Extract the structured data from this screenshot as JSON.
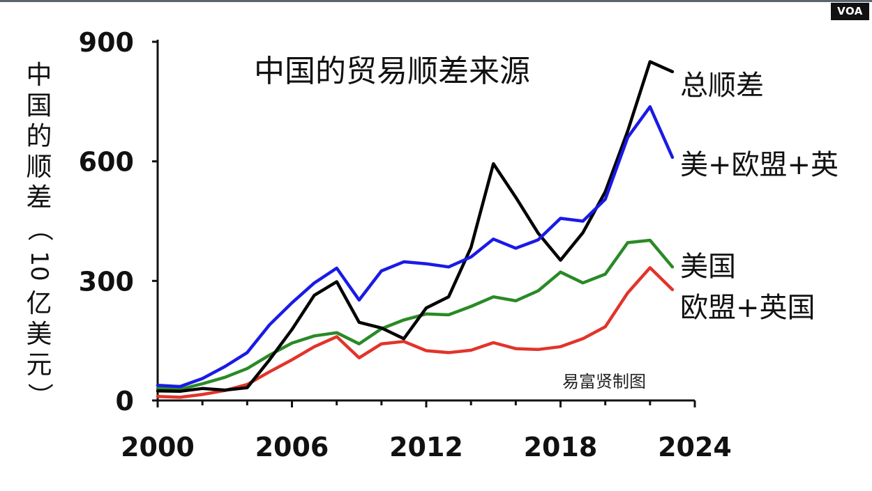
{
  "source_badge": "VOA",
  "chart_data": {
    "type": "line",
    "title": "中国的贸易顺差来源",
    "credit": "易富贤制图",
    "ylabel": "中国的顺差（10亿美元）",
    "ylabel_parts": {
      "chars_top": [
        "中",
        "国",
        "的",
        "顺",
        "差"
      ],
      "paren_open": "（",
      "number": "10",
      "chars_bottom": [
        "亿",
        "美",
        "元"
      ],
      "paren_close": "）"
    },
    "xlim": [
      2000,
      2024
    ],
    "ylim": [
      0,
      900
    ],
    "xticks": [
      "2000",
      "2006",
      "2012",
      "2018",
      "2024"
    ],
    "yticks": [
      "0",
      "300",
      "600",
      "900"
    ],
    "grid": false,
    "legend_placement": "right (inline labels at line ends)",
    "series": [
      {
        "name": "总顺差",
        "color": "#000000",
        "x": [
          2000,
          2001,
          2002,
          2003,
          2004,
          2005,
          2006,
          2007,
          2008,
          2009,
          2010,
          2011,
          2012,
          2013,
          2014,
          2015,
          2016,
          2017,
          2018,
          2019,
          2020,
          2021,
          2022,
          2023
        ],
        "y": [
          24,
          23,
          30,
          26,
          32,
          102,
          178,
          264,
          298,
          196,
          182,
          155,
          232,
          260,
          384,
          594,
          510,
          420,
          352,
          421,
          524,
          676,
          850,
          825
        ]
      },
      {
        "name": "美+欧盟+英",
        "color": "#1a1ae6",
        "x": [
          2000,
          2001,
          2002,
          2003,
          2004,
          2005,
          2006,
          2007,
          2008,
          2009,
          2010,
          2011,
          2012,
          2013,
          2014,
          2015,
          2016,
          2017,
          2018,
          2019,
          2020,
          2021,
          2022,
          2023
        ],
        "y": [
          38,
          35,
          55,
          85,
          120,
          190,
          245,
          295,
          332,
          252,
          325,
          348,
          343,
          335,
          360,
          405,
          382,
          403,
          457,
          450,
          505,
          660,
          737,
          610
        ]
      },
      {
        "name": "美国",
        "color": "#2a8a26",
        "x": [
          2000,
          2001,
          2002,
          2003,
          2004,
          2005,
          2006,
          2007,
          2008,
          2009,
          2010,
          2011,
          2012,
          2013,
          2014,
          2015,
          2016,
          2017,
          2018,
          2019,
          2020,
          2021,
          2022,
          2023
        ],
        "y": [
          30,
          28,
          42,
          58,
          80,
          114,
          144,
          162,
          170,
          142,
          180,
          202,
          217,
          215,
          236,
          260,
          250,
          275,
          322,
          295,
          317,
          396,
          402,
          335
        ]
      },
      {
        "name": "欧盟+英国",
        "color": "#e2342a",
        "x": [
          2000,
          2001,
          2002,
          2003,
          2004,
          2005,
          2006,
          2007,
          2008,
          2009,
          2010,
          2011,
          2012,
          2013,
          2014,
          2015,
          2016,
          2017,
          2018,
          2019,
          2020,
          2021,
          2022,
          2023
        ],
        "y": [
          10,
          8,
          15,
          25,
          40,
          72,
          102,
          135,
          160,
          107,
          142,
          148,
          125,
          120,
          126,
          145,
          130,
          128,
          135,
          155,
          185,
          270,
          333,
          278
        ]
      }
    ]
  }
}
